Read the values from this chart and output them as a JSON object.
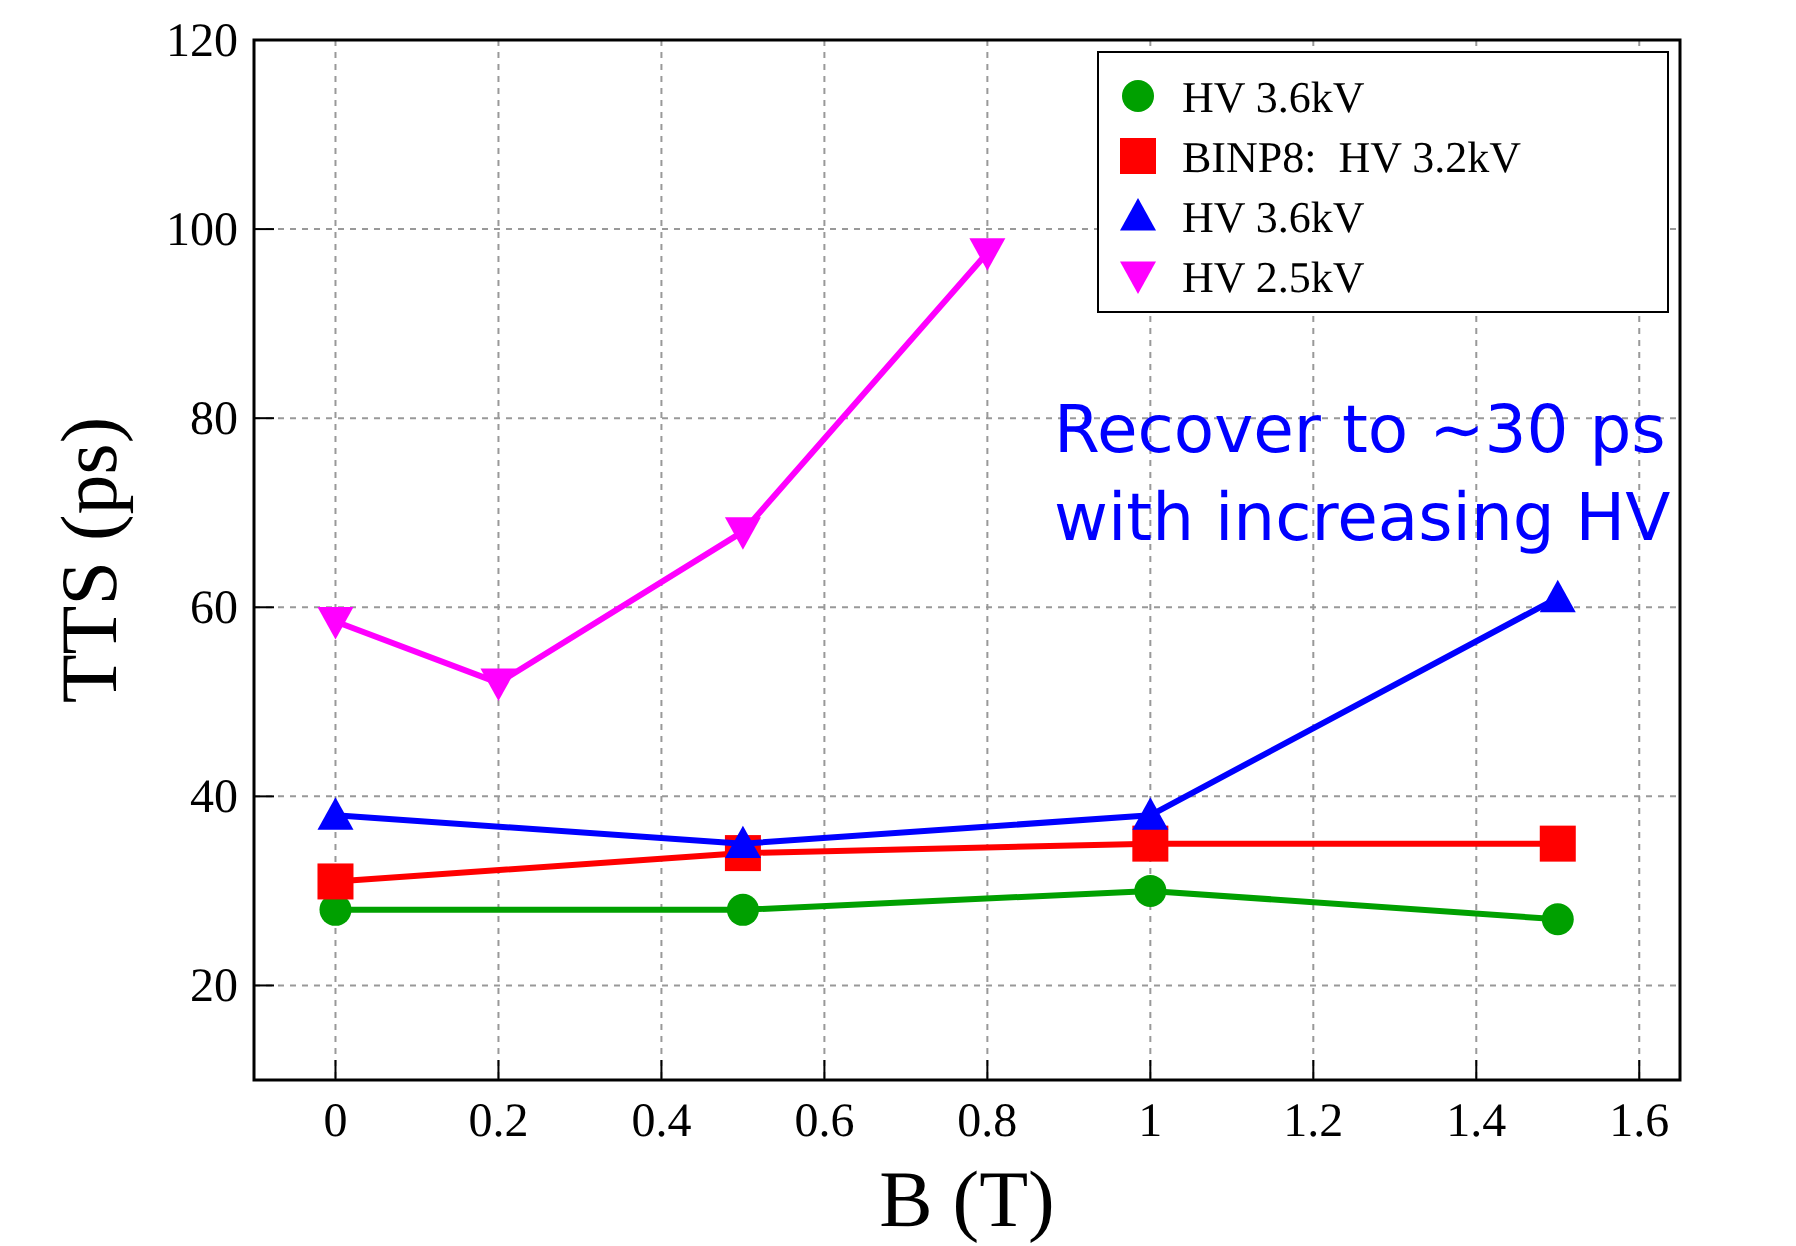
{
  "chart_data": {
    "type": "line",
    "xlabel": "B (T)",
    "ylabel": "TTS (ps)",
    "xlim": [
      -0.1,
      1.65
    ],
    "xticks": [
      0,
      0.2,
      0.4,
      0.6,
      0.8,
      1,
      1.2,
      1.4,
      1.6
    ],
    "ylim": [
      10,
      120
    ],
    "yticks": [
      20,
      40,
      60,
      80,
      100,
      120
    ],
    "grid": true,
    "legend": "top right",
    "line_style": "solid",
    "annotations": [
      "Recover to ~30 ps\nwith increasing HV"
    ],
    "series": [
      {
        "name": "HV 3.6kV",
        "color": "#00a000",
        "marker": "circle",
        "x": [
          0,
          0.5,
          1,
          1.5
        ],
        "values": [
          28,
          28,
          30,
          27
        ]
      },
      {
        "name": "BINP8:  HV 3.2kV",
        "color": "#ff0000",
        "marker": "square",
        "x": [
          0,
          0.5,
          1,
          1.5
        ],
        "values": [
          31,
          34,
          35,
          35
        ]
      },
      {
        "name": "HV 3.6kV",
        "color": "#0000ff",
        "marker": "triangle",
        "x": [
          0,
          0.5,
          1,
          1.5
        ],
        "values": [
          38,
          35,
          38,
          61
        ]
      },
      {
        "name": "HV 2.5kV",
        "color": "#ff00ff",
        "marker": "triangle-down",
        "x": [
          0,
          0.2,
          0.5,
          0.8
        ],
        "values": [
          58.5,
          52,
          68,
          97.5
        ]
      }
    ]
  }
}
